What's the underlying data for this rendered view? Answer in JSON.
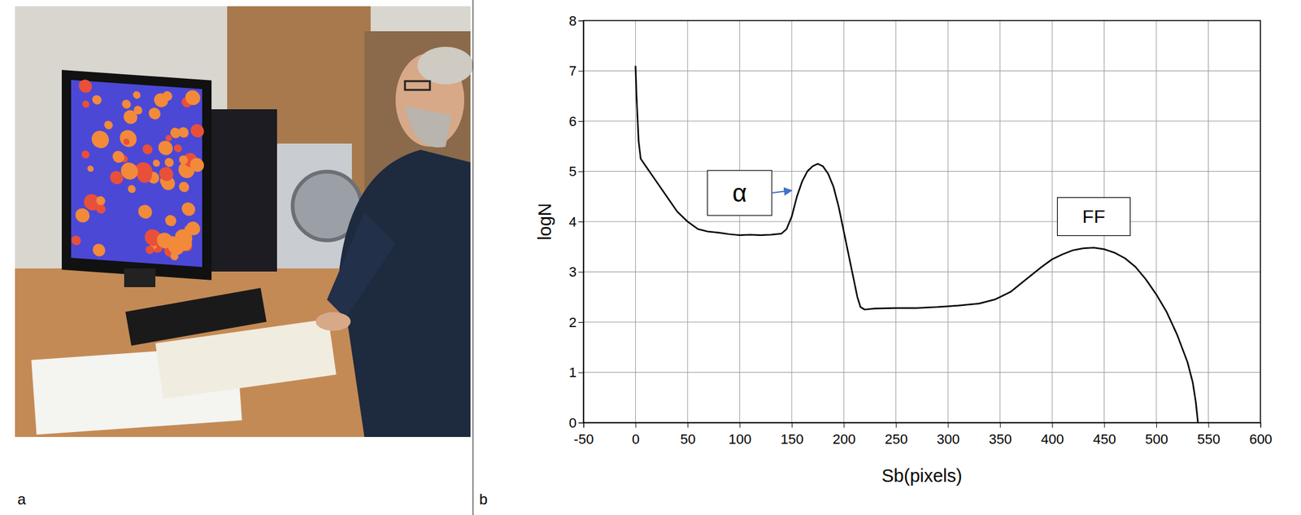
{
  "photo": {
    "panel_label": "a"
  },
  "chart_data": {
    "type": "line",
    "panel_label": "b",
    "x_label": "Sb(pixels)",
    "y_label": "logN",
    "xlim": [
      -50,
      600
    ],
    "xticks": [
      -50,
      0,
      50,
      100,
      150,
      200,
      250,
      300,
      350,
      400,
      450,
      500,
      550,
      600
    ],
    "ylim": [
      0,
      8
    ],
    "yticks": [
      0,
      1,
      2,
      3,
      4,
      5,
      6,
      7,
      8
    ],
    "grid": true,
    "color": "#000000",
    "x": [
      0,
      1,
      3,
      5,
      10,
      20,
      30,
      40,
      50,
      60,
      70,
      80,
      90,
      100,
      110,
      120,
      130,
      140,
      145,
      150,
      155,
      160,
      165,
      170,
      175,
      180,
      185,
      190,
      195,
      200,
      205,
      210,
      213,
      216,
      220,
      230,
      250,
      270,
      290,
      310,
      330,
      345,
      360,
      375,
      390,
      400,
      410,
      420,
      430,
      440,
      450,
      460,
      470,
      480,
      490,
      500,
      510,
      520,
      530,
      535,
      538,
      540
    ],
    "values": [
      7.1,
      6.5,
      5.6,
      5.25,
      5.1,
      4.8,
      4.5,
      4.2,
      4.0,
      3.85,
      3.8,
      3.78,
      3.75,
      3.73,
      3.74,
      3.73,
      3.74,
      3.76,
      3.85,
      4.1,
      4.5,
      4.8,
      5.0,
      5.1,
      5.15,
      5.1,
      4.95,
      4.7,
      4.3,
      3.8,
      3.3,
      2.8,
      2.5,
      2.3,
      2.25,
      2.27,
      2.28,
      2.28,
      2.3,
      2.33,
      2.37,
      2.45,
      2.6,
      2.85,
      3.1,
      3.25,
      3.35,
      3.43,
      3.47,
      3.48,
      3.45,
      3.38,
      3.27,
      3.1,
      2.85,
      2.55,
      2.2,
      1.75,
      1.2,
      0.8,
      0.4,
      0.0
    ],
    "annotations": [
      {
        "text": "α",
        "x": 100,
        "y": 4.57,
        "arrow_x": 150,
        "arrow_y": 4.62
      },
      {
        "text": "FF",
        "x": 440,
        "y": 4.1
      }
    ]
  }
}
